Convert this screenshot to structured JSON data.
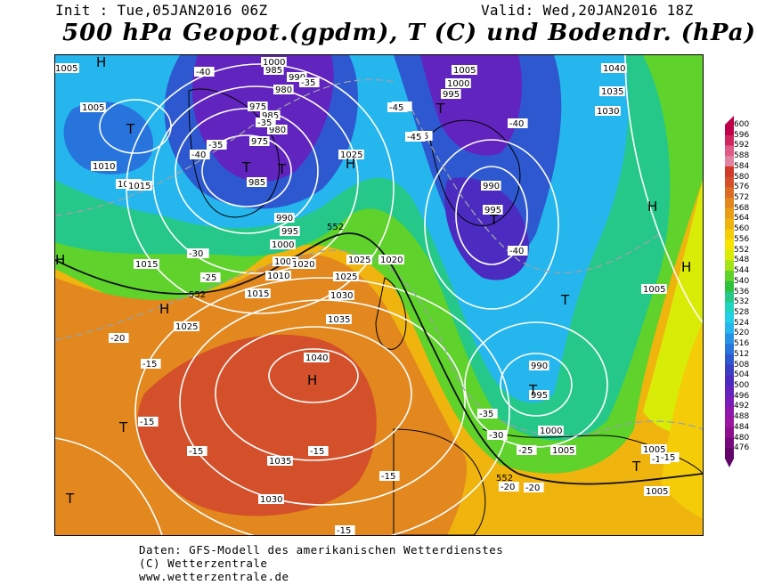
{
  "header": {
    "init": "Init : Tue,05JAN2016 06Z",
    "valid": "Valid: Wed,20JAN2016 18Z",
    "title": "500 hPa Geopot.(gpdm), T (C) und Bodendr. (hPa)"
  },
  "footer": {
    "line1": "Daten: GFS-Modell des amerikanischen Wetterdienstes",
    "line2": "(C) Wetterzentrale",
    "line3": "www.wetterzentrale.de"
  },
  "scale": {
    "unit": "gpdm",
    "labels": [
      "600",
      "596",
      "592",
      "588",
      "584",
      "580",
      "576",
      "572",
      "568",
      "564",
      "560",
      "556",
      "552",
      "548",
      "544",
      "540",
      "536",
      "532",
      "528",
      "524",
      "520",
      "516",
      "512",
      "508",
      "504",
      "500",
      "496",
      "492",
      "488",
      "484",
      "480",
      "476"
    ],
    "colors": [
      "#c0004a",
      "#d1255f",
      "#dd5b86",
      "#e283a2",
      "#cf3a2b",
      "#d4502b",
      "#dc6b25",
      "#e2881e",
      "#ea9e16",
      "#f0b40e",
      "#f4cc08",
      "#f7e300",
      "#d9ec08",
      "#a3e318",
      "#5fd22b",
      "#2ec13a",
      "#25c888",
      "#1fd5bf",
      "#23cfe6",
      "#26b6ee",
      "#2692e6",
      "#2874dd",
      "#2e58cf",
      "#3b3fc4",
      "#4b2bc0",
      "#6224bf",
      "#7a1db8",
      "#8e18ad",
      "#9d169f",
      "#8d0f8f",
      "#78097d",
      "#62056a"
    ]
  },
  "map": {
    "pressure_labels": [
      "1000",
      "985",
      "990",
      "980",
      "975",
      "985",
      "980",
      "975",
      "985",
      "990",
      "995",
      "1000",
      "1005",
      "1010",
      "1015",
      "1020",
      "1025",
      "1030",
      "1035",
      "1040",
      "1035",
      "1030",
      "1025",
      "1020",
      "1015",
      "1010",
      "1005",
      "1005",
      "1000",
      "995",
      "990",
      "995",
      "990",
      "995",
      "1000",
      "1005",
      "1005",
      "1005",
      "1040",
      "1035",
      "1030",
      "1025",
      "1015",
      "1025",
      "1005",
      "1005",
      "1020"
    ],
    "temp_labels": [
      "-40",
      "-35",
      "-35",
      "-35",
      "-30",
      "-40",
      "-35",
      "-35",
      "-45",
      "-45",
      "-40",
      "-40",
      "-30",
      "-25",
      "-20",
      "-15",
      "-15",
      "-15",
      "-15",
      "-15",
      "-15",
      "-20",
      "-25",
      "-30",
      "-35",
      "-15",
      "-20",
      "-15"
    ],
    "geopot_labels": [
      "552",
      "552",
      "552"
    ],
    "high_label": "H",
    "low_label": "T"
  }
}
